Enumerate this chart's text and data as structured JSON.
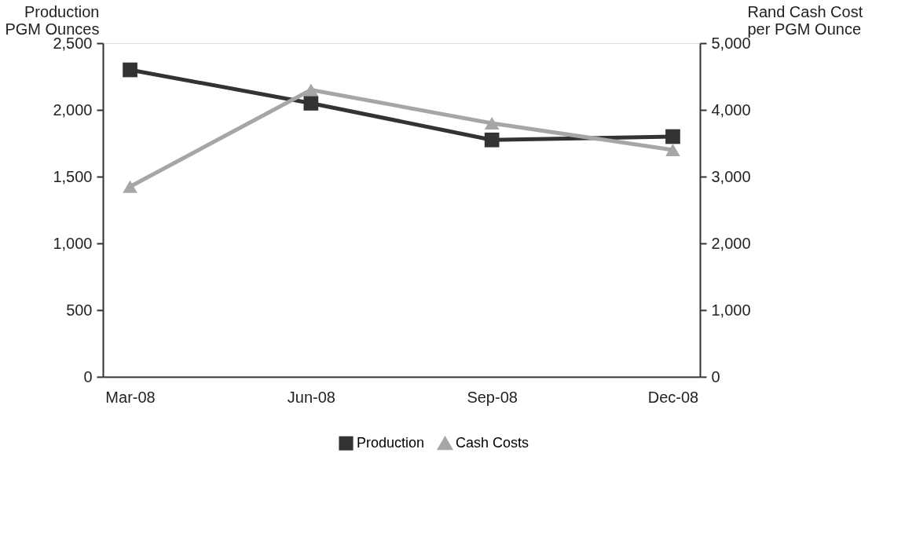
{
  "chart_data": {
    "type": "line",
    "categories": [
      "Mar-08",
      "Jun-08",
      "Sep-08",
      "Dec-08"
    ],
    "series": [
      {
        "name": "Production",
        "color": "#333333",
        "values": [
          2300,
          2050,
          1775,
          1800
        ],
        "marker": "square"
      },
      {
        "name": "Cash Costs",
        "color": "#a6a6a6",
        "values": [
          2850,
          4300,
          3800,
          3400
        ],
        "marker": "triangle",
        "axis": "y2"
      }
    ],
    "ylabel": "Production\nPGM Ounces",
    "y2label": "Rand Cash Cost\nper PGM Ounce",
    "ylim": [
      0,
      2500
    ],
    "yticks": [
      0,
      500,
      {
        "value": 1000,
        "label": "1,000"
      },
      {
        "value": 1500,
        "label": "1,500"
      },
      {
        "value": 2000,
        "label": "2,000"
      },
      {
        "value": 2500,
        "label": "2,500"
      }
    ],
    "y2lim": [
      0,
      5000
    ],
    "y2ticks": [
      0,
      {
        "value": 1000,
        "label": "1,000"
      },
      {
        "value": 2000,
        "label": "2,000"
      },
      {
        "value": 3000,
        "label": "3,000"
      },
      {
        "value": 4000,
        "label": "4,000"
      },
      {
        "value": 5000,
        "label": "5,000"
      }
    ],
    "grid": false,
    "legend": "bottom",
    "line_style": "solid"
  }
}
